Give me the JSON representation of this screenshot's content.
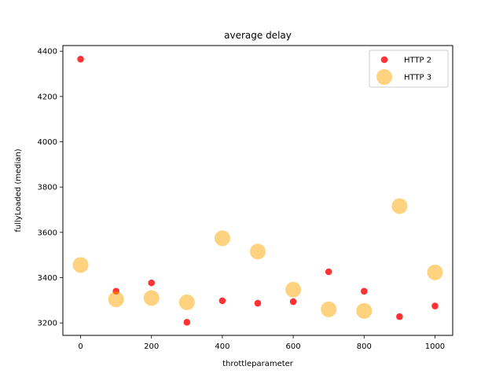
{
  "chart_data": {
    "type": "scatter",
    "title": "average delay",
    "xlabel": "throttleparameter",
    "ylabel": "fullyLoaded (median)",
    "xlim": [
      -50,
      1050
    ],
    "ylim": [
      3145,
      4425
    ],
    "xticks": [
      0,
      200,
      400,
      600,
      800,
      1000
    ],
    "yticks": [
      3200,
      3400,
      3600,
      3800,
      4000,
      4200,
      4400
    ],
    "grid": false,
    "legend": "top-right",
    "series": [
      {
        "name": "HTTP 2",
        "color": "#ff0000",
        "alpha": 0.8,
        "size": "small",
        "x": [
          0,
          100,
          200,
          300,
          400,
          500,
          600,
          700,
          800,
          900,
          1000
        ],
        "y": [
          4365,
          3340,
          3377,
          3203,
          3298,
          3287,
          3294,
          3426,
          3340,
          3228,
          3275
        ]
      },
      {
        "name": "HTTP 3",
        "color": "#ffa500",
        "alpha": 0.5,
        "size": "large",
        "x": [
          0,
          100,
          200,
          300,
          400,
          500,
          600,
          700,
          800,
          900,
          1000
        ],
        "y": [
          3456,
          3304,
          3310,
          3291,
          3574,
          3515,
          3347,
          3260,
          3253,
          3716,
          3423
        ]
      }
    ]
  }
}
